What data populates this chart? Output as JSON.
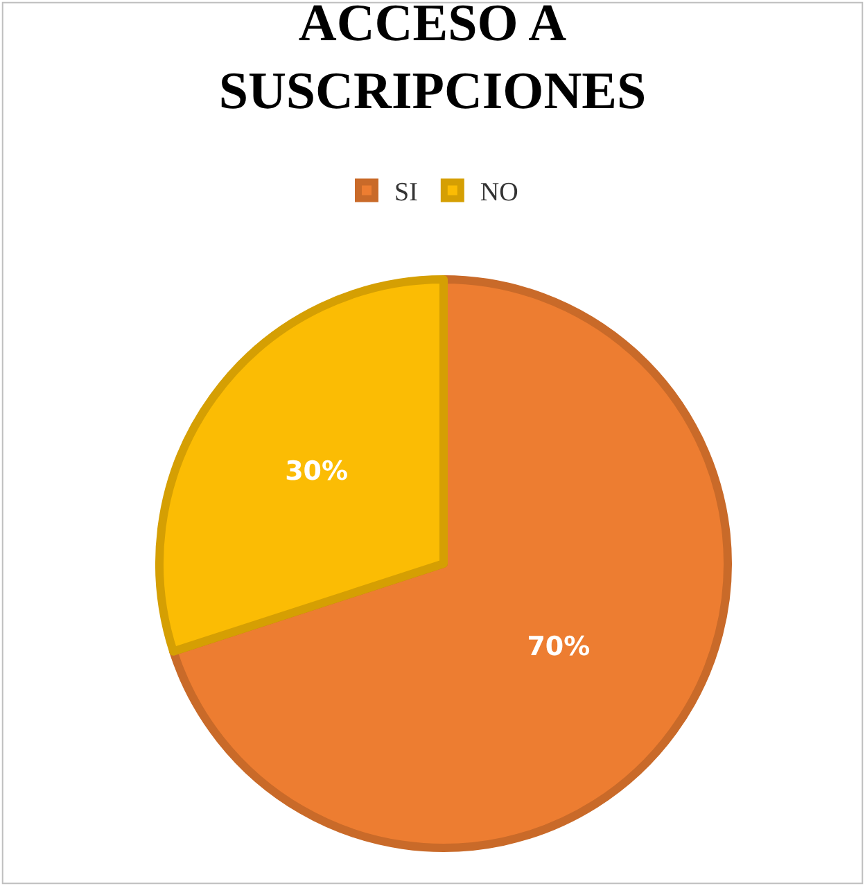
{
  "chart_data": {
    "type": "pie",
    "title": "ACCESO A SUSCRIPCIONES",
    "categories": [
      "SI",
      "NO"
    ],
    "values": [
      70,
      30
    ],
    "colors": [
      "#ed7d31",
      "#fbbc04"
    ],
    "value_labels": [
      "70%",
      "30%"
    ],
    "legend": "top"
  }
}
